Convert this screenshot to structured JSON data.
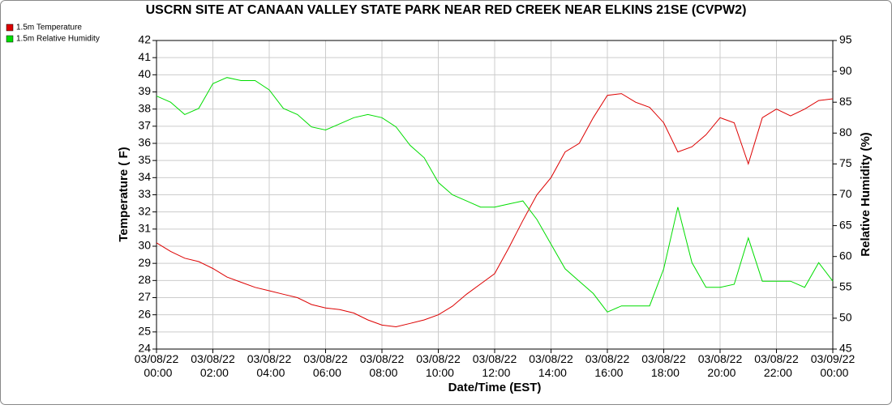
{
  "chart_data": {
    "type": "line",
    "title": "USCRN SITE AT CANAAN VALLEY STATE PARK NEAR RED CREEK NEAR ELKINS 21SE (CVPW2)",
    "xlabel": "Date/Time (EST)",
    "ylabel": "Temperature ( F)",
    "y2label": "Relative Humidity (%)",
    "x": [
      "03/08/22 00:00",
      "03/08/22 00:30",
      "03/08/22 01:00",
      "03/08/22 01:30",
      "03/08/22 02:00",
      "03/08/22 02:30",
      "03/08/22 03:00",
      "03/08/22 03:30",
      "03/08/22 04:00",
      "03/08/22 04:30",
      "03/08/22 05:00",
      "03/08/22 05:30",
      "03/08/22 06:00",
      "03/08/22 06:30",
      "03/08/22 07:00",
      "03/08/22 07:30",
      "03/08/22 08:00",
      "03/08/22 08:30",
      "03/08/22 09:00",
      "03/08/22 09:30",
      "03/08/22 10:00",
      "03/08/22 10:30",
      "03/08/22 11:00",
      "03/08/22 11:30",
      "03/08/22 12:00",
      "03/08/22 12:30",
      "03/08/22 13:00",
      "03/08/22 13:30",
      "03/08/22 14:00",
      "03/08/22 14:30",
      "03/08/22 15:00",
      "03/08/22 15:30",
      "03/08/22 16:00",
      "03/08/22 16:30",
      "03/08/22 17:00",
      "03/08/22 17:30",
      "03/08/22 18:00",
      "03/08/22 18:30",
      "03/08/22 19:00",
      "03/08/22 19:30",
      "03/08/22 20:00",
      "03/08/22 20:30",
      "03/08/22 21:00",
      "03/08/22 21:30",
      "03/08/22 22:00",
      "03/08/22 22:30",
      "03/08/22 23:00",
      "03/08/22 23:30",
      "03/09/22 00:00"
    ],
    "series": [
      {
        "name": "1.5m Temperature",
        "color": "#dd0000",
        "axis": "y",
        "values": [
          30.2,
          29.7,
          29.3,
          29.1,
          28.7,
          28.2,
          27.9,
          27.6,
          27.4,
          27.2,
          27.0,
          26.6,
          26.4,
          26.3,
          26.1,
          25.7,
          25.4,
          25.3,
          25.5,
          25.7,
          26.0,
          26.5,
          27.2,
          27.8,
          28.4,
          29.9,
          31.5,
          33.0,
          34.0,
          35.5,
          36.0,
          37.5,
          38.8,
          38.9,
          38.4,
          38.1,
          37.2,
          35.5,
          35.8,
          36.5,
          37.5,
          37.2,
          34.8,
          37.5,
          38.0,
          37.6,
          38.0,
          38.5,
          38.6
        ]
      },
      {
        "name": "1.5m Relative Humidity",
        "color": "#00dd00",
        "axis": "y2",
        "values": [
          86,
          85,
          83,
          84,
          88,
          89,
          88.5,
          88.5,
          87,
          84,
          83,
          81,
          80.5,
          81.5,
          82.5,
          83,
          82.5,
          81,
          78,
          76,
          72,
          70,
          69,
          68,
          68,
          68.5,
          69,
          66,
          62,
          58,
          56,
          54,
          51,
          52,
          52,
          52,
          58,
          68,
          59,
          55,
          55,
          55.5,
          63,
          56,
          56,
          56,
          55,
          59,
          56
        ]
      }
    ],
    "xlim": [
      "03/08/22 00:00",
      "03/09/22 00:00"
    ],
    "xticks": [
      "03/08/22 00:00",
      "03/08/22 02:00",
      "03/08/22 04:00",
      "03/08/22 06:00",
      "03/08/22 08:00",
      "03/08/22 10:00",
      "03/08/22 12:00",
      "03/08/22 14:00",
      "03/08/22 16:00",
      "03/08/22 18:00",
      "03/08/22 20:00",
      "03/08/22 22:00",
      "03/09/22 00:00"
    ],
    "ylim": [
      24,
      42
    ],
    "yticks": [
      24,
      25,
      26,
      27,
      28,
      29,
      30,
      31,
      32,
      33,
      34,
      35,
      36,
      37,
      38,
      39,
      40,
      41,
      42
    ],
    "y2lim": [
      45,
      95
    ],
    "y2ticks": [
      45,
      50,
      55,
      60,
      65,
      70,
      75,
      80,
      85,
      90,
      95
    ],
    "grid": true,
    "legend": "upper left"
  }
}
